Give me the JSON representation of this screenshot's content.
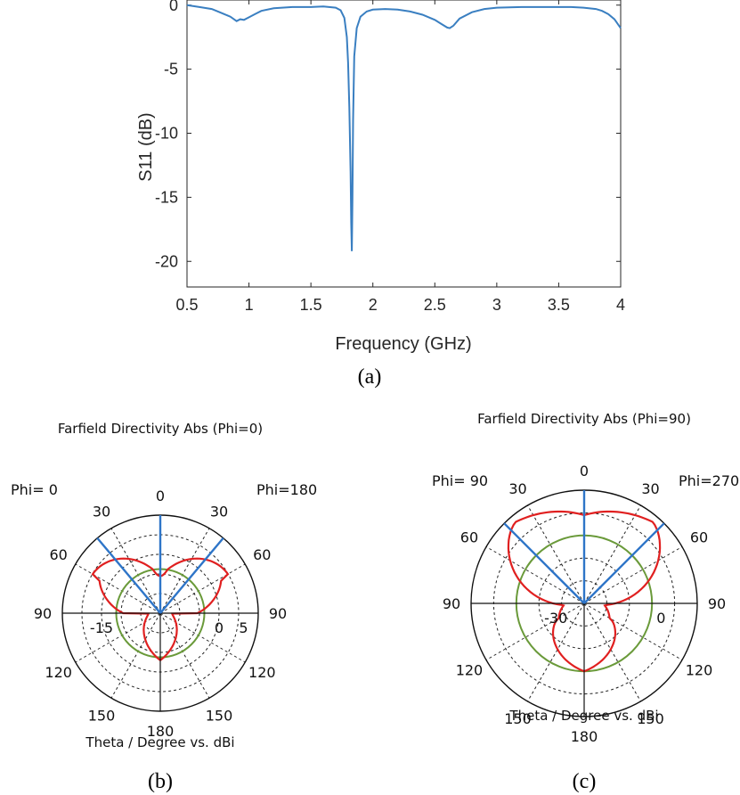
{
  "chart_data": [
    {
      "type": "line",
      "caption": "(a)",
      "xlabel": "Frequency (GHz)",
      "ylabel": "S11 (dB)",
      "xlim": [
        0.5,
        4
      ],
      "ylim": [
        -22,
        0.4
      ],
      "xticks": [
        "0.5",
        "1",
        "1.5",
        "2",
        "2.5",
        "3",
        "3.5",
        "4"
      ],
      "yticks": [
        "0",
        "-5",
        "-10",
        "-15",
        "-20"
      ],
      "grid": false,
      "series": [
        {
          "color": "#3a7fc1",
          "x": [
            0.5,
            0.6,
            0.7,
            0.75,
            0.8,
            0.85,
            0.9,
            0.93,
            0.96,
            1.0,
            1.05,
            1.1,
            1.2,
            1.35,
            1.5,
            1.6,
            1.7,
            1.74,
            1.77,
            1.79,
            1.8,
            1.81,
            1.82,
            1.825,
            1.83,
            1.835,
            1.84,
            1.85,
            1.87,
            1.9,
            1.95,
            2.0,
            2.1,
            2.2,
            2.3,
            2.4,
            2.5,
            2.55,
            2.6,
            2.62,
            2.65,
            2.7,
            2.8,
            2.9,
            3.0,
            3.2,
            3.4,
            3.6,
            3.7,
            3.8,
            3.85,
            3.9,
            3.95,
            4.0
          ],
          "y": [
            0.0,
            -0.15,
            -0.3,
            -0.5,
            -0.7,
            -0.9,
            -1.25,
            -1.1,
            -1.15,
            -0.95,
            -0.7,
            -0.45,
            -0.25,
            -0.15,
            -0.15,
            -0.1,
            -0.2,
            -0.4,
            -1.0,
            -2.5,
            -4.5,
            -8.0,
            -13.0,
            -17.0,
            -19.2,
            -15.0,
            -9.0,
            -4.0,
            -1.8,
            -0.9,
            -0.5,
            -0.35,
            -0.3,
            -0.35,
            -0.5,
            -0.75,
            -1.15,
            -1.45,
            -1.75,
            -1.8,
            -1.6,
            -1.05,
            -0.55,
            -0.3,
            -0.2,
            -0.15,
            -0.15,
            -0.15,
            -0.2,
            -0.3,
            -0.45,
            -0.7,
            -1.1,
            -1.8
          ]
        }
      ]
    },
    {
      "type": "polar",
      "caption": "(b)",
      "title": "Farfield Directivity Abs (Phi=0)",
      "subtitle": "Theta / Degree vs. dBi",
      "left_label": "Phi=  0",
      "right_label": "Phi=180",
      "angle_labels": [
        "0",
        "30",
        "60",
        "90",
        "120",
        "150",
        "180",
        "150",
        "120",
        "90",
        "60",
        "30"
      ],
      "radial_labels": [
        "-15",
        "0",
        "5"
      ],
      "series": [
        {
          "color": "#e02020",
          "name": "pattern",
          "max_gain_deg": 40
        },
        {
          "color": "#6a9a3a",
          "name": "reference circle",
          "radius_fraction": 0.45
        },
        {
          "color": "#2e75c8",
          "name": "beam lines",
          "angles_deg": [
            -40,
            0,
            40
          ]
        }
      ]
    },
    {
      "type": "polar",
      "caption": "(c)",
      "title": "Farfield Directivity Abs (Phi=90)",
      "subtitle": "Theta / Degree vs. dBi",
      "left_label": "Phi= 90",
      "right_label": "Phi=270",
      "angle_labels": [
        "0",
        "30",
        "60",
        "90",
        "120",
        "150",
        "180",
        "150",
        "120",
        "90",
        "60",
        "30"
      ],
      "radial_labels": [
        "-30",
        "0"
      ],
      "series": [
        {
          "color": "#e02020",
          "name": "pattern",
          "max_gain_deg": 45
        },
        {
          "color": "#6a9a3a",
          "name": "reference circle",
          "radius_fraction": 0.6
        },
        {
          "color": "#2e75c8",
          "name": "beam lines",
          "angles_deg": [
            -45,
            0,
            45
          ]
        }
      ]
    }
  ]
}
